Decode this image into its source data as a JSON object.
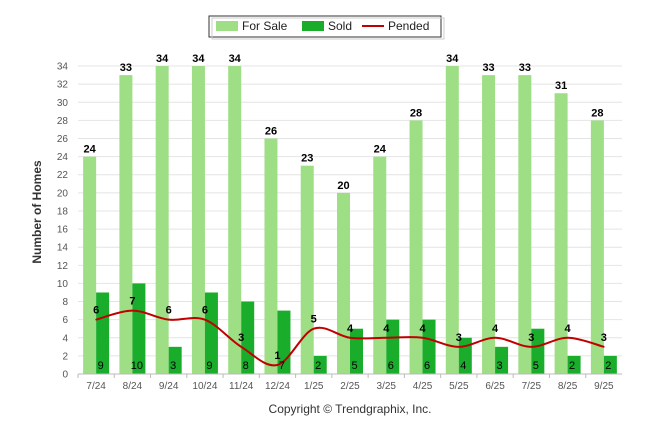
{
  "chart_data": {
    "type": "bar",
    "title": "",
    "xlabel": "",
    "ylabel": "Number of Homes",
    "ylim": [
      0,
      35
    ],
    "yticks": [
      0,
      2,
      4,
      6,
      8,
      10,
      12,
      14,
      16,
      18,
      20,
      22,
      24,
      26,
      28,
      30,
      32,
      34
    ],
    "grid": true,
    "legend_position": "top-center",
    "categories": [
      "7/24",
      "8/24",
      "9/24",
      "10/24",
      "11/24",
      "12/24",
      "1/25",
      "2/25",
      "3/25",
      "4/25",
      "5/25",
      "6/25",
      "7/25",
      "8/25",
      "9/25"
    ],
    "series": [
      {
        "name": "For Sale",
        "type": "bar",
        "color": "#9ede84",
        "values": [
          24,
          33,
          34,
          34,
          34,
          26,
          23,
          20,
          24,
          28,
          34,
          33,
          33,
          31,
          28
        ]
      },
      {
        "name": "Sold",
        "type": "bar",
        "color": "#1aad2c",
        "values": [
          9,
          10,
          3,
          9,
          8,
          7,
          2,
          5,
          6,
          6,
          4,
          3,
          5,
          2,
          2
        ]
      },
      {
        "name": "Pended",
        "type": "line",
        "color": "#c00000",
        "values": [
          6,
          7,
          6,
          6,
          3,
          1,
          5,
          4,
          4,
          4,
          3,
          4,
          3,
          4,
          3
        ]
      }
    ],
    "credit": "Copyright © Trendgraphix, Inc."
  }
}
